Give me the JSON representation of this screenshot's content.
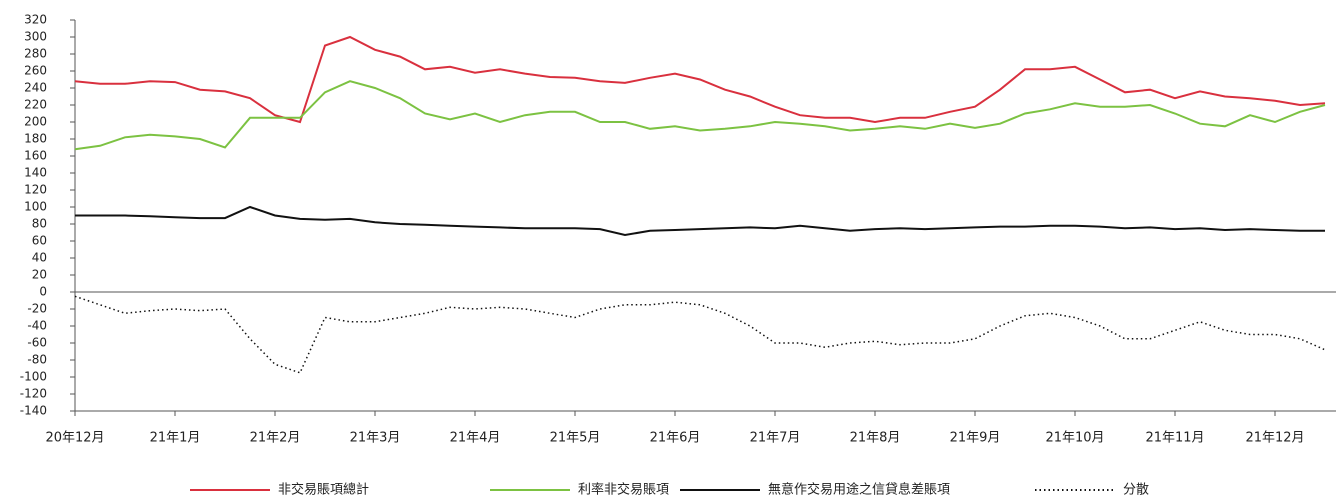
{
  "chart_data": {
    "type": "line",
    "categories": [
      "20年12月",
      null,
      null,
      null,
      "21年1月",
      null,
      null,
      null,
      "21年2月",
      null,
      null,
      null,
      "21年3月",
      null,
      null,
      null,
      "21年4月",
      null,
      null,
      null,
      "21年5月",
      null,
      null,
      null,
      "21年6月",
      null,
      null,
      null,
      "21年7月",
      null,
      null,
      null,
      "21年8月",
      null,
      null,
      null,
      "21年9月",
      null,
      null,
      null,
      "21年10月",
      null,
      null,
      null,
      "21年11月",
      null,
      null,
      null,
      "21年12月",
      null,
      null
    ],
    "series": [
      {
        "name": "非交易賬項總計",
        "color": "#d9303e",
        "style": "solid",
        "values": [
          248,
          245,
          245,
          248,
          247,
          238,
          236,
          228,
          208,
          200,
          290,
          300,
          285,
          277,
          262,
          265,
          258,
          262,
          257,
          253,
          252,
          248,
          246,
          252,
          257,
          250,
          238,
          230,
          218,
          208,
          205,
          205,
          200,
          205,
          205,
          212,
          218,
          238,
          262,
          262,
          265,
          250,
          235,
          238,
          228,
          236,
          230,
          228,
          225,
          220,
          222
        ]
      },
      {
        "name": "利率非交易賬項",
        "color": "#7cc242",
        "style": "solid",
        "values": [
          168,
          172,
          182,
          185,
          183,
          180,
          170,
          205,
          205,
          205,
          235,
          248,
          240,
          228,
          210,
          203,
          210,
          200,
          208,
          212,
          212,
          200,
          200,
          192,
          195,
          190,
          192,
          195,
          200,
          198,
          195,
          190,
          192,
          195,
          192,
          198,
          193,
          198,
          210,
          215,
          222,
          218,
          218,
          220,
          210,
          198,
          195,
          208,
          200,
          212,
          220
        ]
      },
      {
        "name": "無意作交易用途之信貸息差賬項",
        "color": "#111111",
        "style": "solid",
        "values": [
          90,
          90,
          90,
          89,
          88,
          87,
          87,
          100,
          90,
          86,
          85,
          86,
          82,
          80,
          79,
          78,
          77,
          76,
          75,
          75,
          75,
          74,
          67,
          72,
          73,
          74,
          75,
          76,
          75,
          78,
          75,
          72,
          74,
          75,
          74,
          75,
          76,
          77,
          77,
          78,
          78,
          77,
          75,
          76,
          74,
          75,
          73,
          74,
          73,
          72,
          72
        ]
      },
      {
        "name": "分散",
        "color": "#111111",
        "style": "dotted",
        "values": [
          -5,
          -15,
          -25,
          -22,
          -20,
          -22,
          -20,
          -55,
          -85,
          -95,
          -30,
          -35,
          -35,
          -30,
          -25,
          -18,
          -20,
          -18,
          -20,
          -25,
          -30,
          -20,
          -15,
          -15,
          -12,
          -15,
          -25,
          -40,
          -60,
          -60,
          -65,
          -60,
          -58,
          -62,
          -60,
          -60,
          -55,
          -40,
          -28,
          -25,
          -30,
          -40,
          -55,
          -55,
          -45,
          -35,
          -45,
          -50,
          -50,
          -55,
          -68
        ]
      }
    ],
    "ylim": [
      -140,
      320
    ],
    "yticks": [
      -140,
      -120,
      -100,
      -80,
      -60,
      -40,
      -20,
      0,
      20,
      40,
      60,
      80,
      100,
      120,
      140,
      160,
      180,
      200,
      220,
      240,
      260,
      280,
      300,
      320
    ]
  }
}
